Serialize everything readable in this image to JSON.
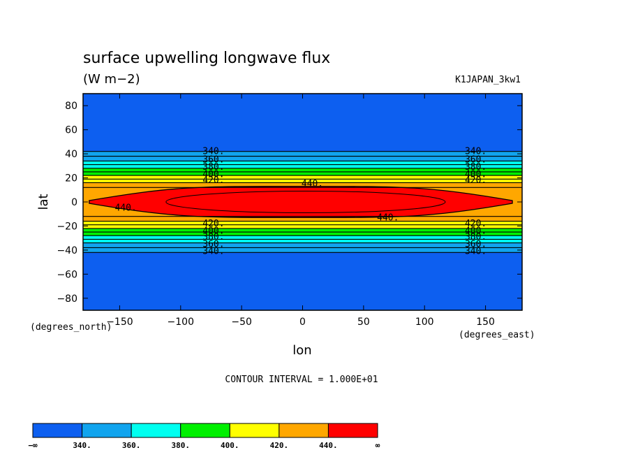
{
  "chart_data": {
    "type": "heatmap",
    "title": "surface upwelling longwave flux",
    "units": "(W m−2)",
    "dataset": "K1JAPAN_3kw1",
    "xlabel": "lon",
    "ylabel": "lat",
    "x_units": "(degrees_east)",
    "y_units": "(degrees_north)",
    "xlim": [
      -180,
      180
    ],
    "ylim": [
      -90,
      90
    ],
    "xticks": [
      -150,
      -100,
      -50,
      0,
      50,
      100,
      150
    ],
    "xtick_labels": [
      "−150",
      "−100",
      "−50",
      "0",
      "50",
      "100",
      "150"
    ],
    "yticks": [
      80,
      60,
      40,
      20,
      0,
      -20,
      -40,
      -60,
      -80
    ],
    "ytick_labels": [
      "80",
      "60",
      "40",
      "20",
      "0",
      "−20",
      "−40",
      "−60",
      "−80"
    ],
    "contour_interval_text": "CONTOUR INTERVAL = 1.000E+01",
    "contour_levels": [
      340,
      350,
      360,
      370,
      380,
      390,
      400,
      410,
      420,
      430,
      440
    ],
    "fill_bands": [
      {
        "from": "-∞",
        "to": 340,
        "color": "#0d5ff0"
      },
      {
        "from": 340,
        "to": 360,
        "color": "#11a4ee"
      },
      {
        "from": 360,
        "to": 380,
        "color": "#00fff0"
      },
      {
        "from": 380,
        "to": 400,
        "color": "#00f000"
      },
      {
        "from": 400,
        "to": 420,
        "color": "#ffff00"
      },
      {
        "from": 420,
        "to": 440,
        "color": "#ffa700"
      },
      {
        "from": 440,
        "to": "∞",
        "color": "#ff0000"
      }
    ],
    "contour_latitudes": [
      {
        "level": 340,
        "lat": 42
      },
      {
        "level": 350,
        "lat": 38
      },
      {
        "level": 360,
        "lat": 34
      },
      {
        "level": 370,
        "lat": 31
      },
      {
        "level": 380,
        "lat": 28
      },
      {
        "level": 390,
        "lat": 25
      },
      {
        "level": 400,
        "lat": 22
      },
      {
        "level": 410,
        "lat": 19
      },
      {
        "level": 420,
        "lat": 16
      },
      {
        "level": 430,
        "lat": 12
      }
    ],
    "center_region": {
      "level": 440,
      "lon_min": -175,
      "lon_max": 172,
      "lat_half": 13
    },
    "inner_contour": {
      "lon_min": -112,
      "lon_max": 117,
      "lat_half": 9
    },
    "contour_labels": [
      {
        "text": "340.",
        "lon": -73,
        "lat": 42
      },
      {
        "text": "360.",
        "lon": -73,
        "lat": 35
      },
      {
        "text": "380.",
        "lon": -73,
        "lat": 29
      },
      {
        "text": "400.",
        "lon": -73,
        "lat": 23
      },
      {
        "text": "420.",
        "lon": -73,
        "lat": 18
      },
      {
        "text": "340.",
        "lon": 142,
        "lat": 42
      },
      {
        "text": "360.",
        "lon": 142,
        "lat": 35
      },
      {
        "text": "380.",
        "lon": 142,
        "lat": 29
      },
      {
        "text": "400.",
        "lon": 142,
        "lat": 23
      },
      {
        "text": "420.",
        "lon": 142,
        "lat": 18
      },
      {
        "text": "440.",
        "lon": 8,
        "lat": 15
      },
      {
        "text": "440.",
        "lon": -145,
        "lat": -5
      },
      {
        "text": "440.",
        "lon": 70,
        "lat": -13
      },
      {
        "text": "420.",
        "lon": -73,
        "lat": -18
      },
      {
        "text": "400.",
        "lon": -73,
        "lat": -24
      },
      {
        "text": "380.",
        "lon": -73,
        "lat": -29
      },
      {
        "text": "360.",
        "lon": -73,
        "lat": -35
      },
      {
        "text": "340.",
        "lon": -73,
        "lat": -41
      },
      {
        "text": "420.",
        "lon": 142,
        "lat": -18
      },
      {
        "text": "400.",
        "lon": 142,
        "lat": -24
      },
      {
        "text": "380.",
        "lon": 142,
        "lat": -29
      },
      {
        "text": "360.",
        "lon": 142,
        "lat": -35
      },
      {
        "text": "340.",
        "lon": 142,
        "lat": -41
      }
    ],
    "colorbar": {
      "colors": [
        "#0d5ff0",
        "#11a4ee",
        "#00fff0",
        "#00f000",
        "#ffff00",
        "#ffa700",
        "#ff0000"
      ],
      "labels": [
        "−∞",
        "340.",
        "360.",
        "380.",
        "400.",
        "420.",
        "440.",
        "∞"
      ]
    }
  }
}
